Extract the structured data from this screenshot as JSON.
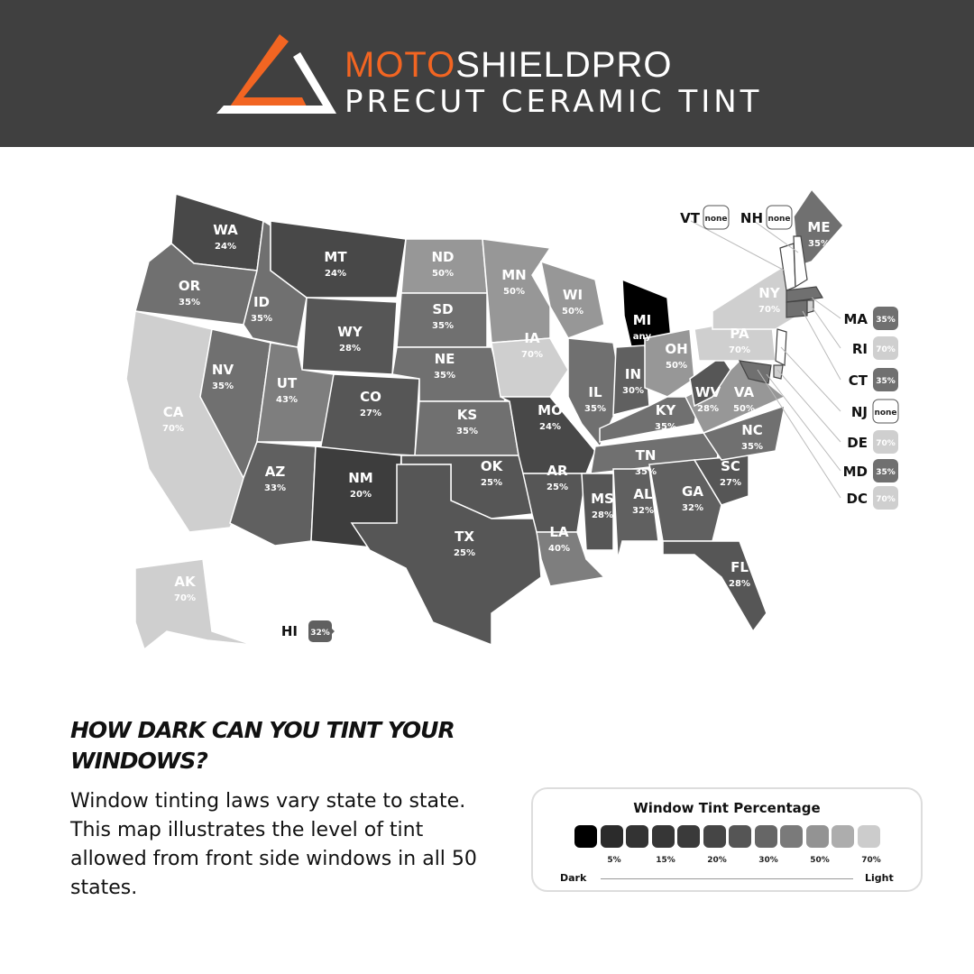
{
  "header": {
    "brand_accent": "MOTO",
    "brand_rest": "SHIELDPRO",
    "tagline": "PRECUT CERAMIC TINT",
    "accent_color": "#f26522",
    "logo": "triangle-logo"
  },
  "map": {
    "states": [
      {
        "code": "WA",
        "value": "24%"
      },
      {
        "code": "OR",
        "value": "35%"
      },
      {
        "code": "CA",
        "value": "70%"
      },
      {
        "code": "NV",
        "value": "35%"
      },
      {
        "code": "ID",
        "value": "35%"
      },
      {
        "code": "MT",
        "value": "24%"
      },
      {
        "code": "WY",
        "value": "28%"
      },
      {
        "code": "UT",
        "value": "43%"
      },
      {
        "code": "CO",
        "value": "27%"
      },
      {
        "code": "AZ",
        "value": "33%"
      },
      {
        "code": "NM",
        "value": "20%"
      },
      {
        "code": "ND",
        "value": "50%"
      },
      {
        "code": "SD",
        "value": "35%"
      },
      {
        "code": "NE",
        "value": "35%"
      },
      {
        "code": "KS",
        "value": "35%"
      },
      {
        "code": "OK",
        "value": "25%"
      },
      {
        "code": "TX",
        "value": "25%"
      },
      {
        "code": "MN",
        "value": "50%"
      },
      {
        "code": "IA",
        "value": "70%"
      },
      {
        "code": "MO",
        "value": "24%"
      },
      {
        "code": "AR",
        "value": "25%"
      },
      {
        "code": "LA",
        "value": "40%"
      },
      {
        "code": "WI",
        "value": "50%"
      },
      {
        "code": "IL",
        "value": "35%"
      },
      {
        "code": "MI",
        "value": "any"
      },
      {
        "code": "IN",
        "value": "30%"
      },
      {
        "code": "OH",
        "value": "50%"
      },
      {
        "code": "KY",
        "value": "35%"
      },
      {
        "code": "TN",
        "value": "35%"
      },
      {
        "code": "MS",
        "value": "28%"
      },
      {
        "code": "AL",
        "value": "32%"
      },
      {
        "code": "GA",
        "value": "32%"
      },
      {
        "code": "FL",
        "value": "28%"
      },
      {
        "code": "SC",
        "value": "27%"
      },
      {
        "code": "NC",
        "value": "35%"
      },
      {
        "code": "VA",
        "value": "50%"
      },
      {
        "code": "WV",
        "value": "28%"
      },
      {
        "code": "PA",
        "value": "70%"
      },
      {
        "code": "NY",
        "value": "70%"
      },
      {
        "code": "ME",
        "value": "35%"
      },
      {
        "code": "AK",
        "value": "70%"
      },
      {
        "code": "HI",
        "value": "32%"
      }
    ],
    "callouts": [
      {
        "code": "VT",
        "value": "none"
      },
      {
        "code": "NH",
        "value": "none"
      },
      {
        "code": "MA",
        "value": "35%"
      },
      {
        "code": "RI",
        "value": "70%"
      },
      {
        "code": "CT",
        "value": "35%"
      },
      {
        "code": "NJ",
        "value": "none"
      },
      {
        "code": "DE",
        "value": "70%"
      },
      {
        "code": "MD",
        "value": "35%"
      },
      {
        "code": "DC",
        "value": "70%"
      }
    ]
  },
  "info": {
    "heading": "HOW DARK CAN YOU TINT YOUR WINDOWS?",
    "body": "Window tinting laws vary state to state. This map illustrates the level of tint allowed from front side windows in all 50 states."
  },
  "legend": {
    "title": "Window Tint Percentage",
    "swatches": [
      "#000000",
      "#2b2b2b",
      "#333333",
      "#363636",
      "#3a3a3a",
      "#454545",
      "#555555",
      "#666666",
      "#7a7a7a",
      "#939393",
      "#adadad",
      "#cccccc"
    ],
    "labels": [
      "5%",
      "15%",
      "20%",
      "30%",
      "50%",
      "70%"
    ],
    "dark": "Dark",
    "light": "Light"
  }
}
